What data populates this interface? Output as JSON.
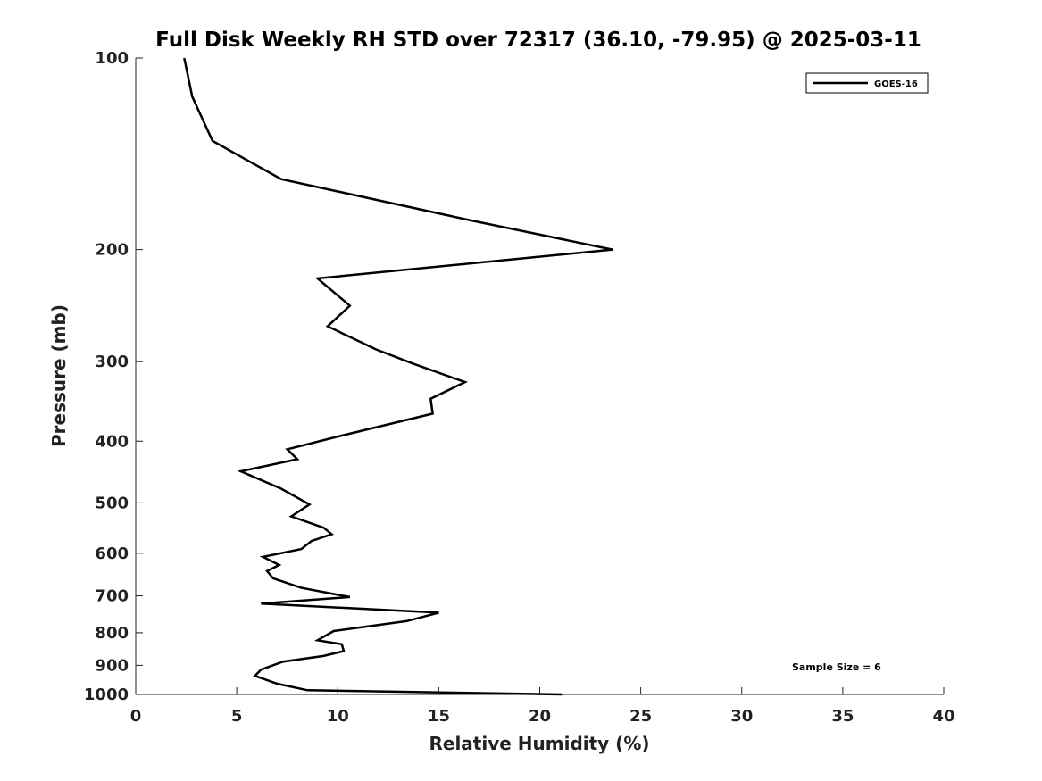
{
  "chart_data": {
    "type": "line",
    "title": "Full Disk Weekly RH STD over 72317 (36.10, -79.95) @ 2025-03-11",
    "xlabel": "Relative Humidity (%)",
    "ylabel": "Pressure (mb)",
    "xlim": [
      0,
      40
    ],
    "ylim": [
      1000,
      100
    ],
    "y_scale": "log",
    "x_ticks": [
      "0",
      "5",
      "10",
      "15",
      "20",
      "25",
      "30",
      "35",
      "40"
    ],
    "y_ticks": [
      "100",
      "200",
      "300",
      "400",
      "500",
      "600",
      "700",
      "800",
      "900",
      "1000"
    ],
    "legend_position": "top-right",
    "grid": false,
    "annotation": "Sample Size = 6",
    "series": [
      {
        "name": "GOES-16",
        "color": "#000000",
        "x": [
          2.4,
          2.8,
          3.8,
          7.2,
          16.6,
          23.6,
          9.0,
          10.6,
          9.5,
          11.9,
          13.7,
          16.3,
          14.6,
          14.7,
          10.2,
          7.5,
          8.0,
          5.2,
          7.2,
          8.6,
          7.7,
          9.3,
          9.7,
          8.7,
          8.2,
          6.3,
          7.1,
          6.5,
          6.8,
          8.2,
          10.6,
          6.2,
          15.0,
          13.4,
          9.8,
          9.0,
          10.2,
          10.3,
          9.3,
          7.3,
          6.2,
          5.9,
          7.0,
          8.5,
          21.1
        ],
        "y": [
          100,
          115,
          135,
          155,
          180,
          200,
          222,
          245,
          264,
          287,
          302,
          323,
          343,
          362,
          392,
          412,
          427,
          446,
          475,
          503,
          525,
          547,
          560,
          574,
          591,
          608,
          626,
          640,
          657,
          680,
          703,
          720,
          744,
          767,
          795,
          822,
          834,
          855,
          870,
          888,
          914,
          935,
          962,
          985,
          1000
        ]
      }
    ]
  }
}
